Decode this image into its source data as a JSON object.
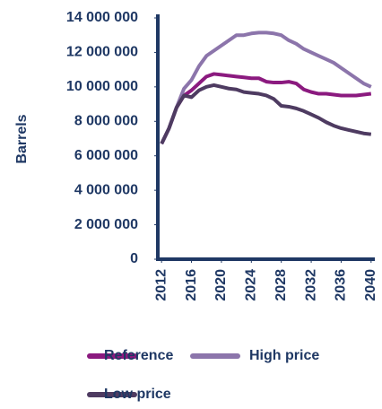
{
  "chart_data": {
    "type": "line",
    "y_label": "Barrels",
    "x": [
      2012,
      2013,
      2014,
      2015,
      2016,
      2017,
      2018,
      2019,
      2020,
      2021,
      2022,
      2023,
      2024,
      2025,
      2026,
      2027,
      2028,
      2029,
      2030,
      2031,
      2032,
      2033,
      2034,
      2035,
      2036,
      2037,
      2038,
      2039,
      2040
    ],
    "series": [
      {
        "name": "Reference",
        "color": "#8b1a7f",
        "values": [
          6700000,
          7600000,
          8800000,
          9500000,
          9800000,
          10200000,
          10600000,
          10750000,
          10700000,
          10650000,
          10600000,
          10550000,
          10500000,
          10500000,
          10300000,
          10250000,
          10250000,
          10300000,
          10200000,
          9850000,
          9700000,
          9600000,
          9600000,
          9550000,
          9500000,
          9500000,
          9500000,
          9550000,
          9600000
        ]
      },
      {
        "name": "High price",
        "color": "#8c75ab",
        "values": [
          6700000,
          7600000,
          8800000,
          9900000,
          10400000,
          11200000,
          11800000,
          12100000,
          12400000,
          12700000,
          13000000,
          13000000,
          13100000,
          13150000,
          13150000,
          13100000,
          13000000,
          12700000,
          12500000,
          12200000,
          12000000,
          11800000,
          11600000,
          11400000,
          11100000,
          10800000,
          10500000,
          10200000,
          10000000
        ]
      },
      {
        "name": "Low price",
        "color": "#4e3b61",
        "values": [
          6700000,
          7600000,
          8800000,
          9500000,
          9400000,
          9800000,
          10000000,
          10100000,
          10000000,
          9900000,
          9850000,
          9700000,
          9650000,
          9600000,
          9500000,
          9300000,
          8900000,
          8850000,
          8750000,
          8600000,
          8400000,
          8200000,
          7950000,
          7750000,
          7600000,
          7500000,
          7400000,
          7300000,
          7250000
        ]
      }
    ],
    "xlim": [
      2011.5,
      2040.5
    ],
    "xticks": [
      2012,
      2016,
      2020,
      2024,
      2028,
      2032,
      2036,
      2040
    ],
    "ylim": [
      0,
      14000000
    ],
    "yticks": [
      0,
      {
        "value": 2000000,
        "label": "2 000 000"
      },
      {
        "value": 4000000,
        "label": "4 000 000"
      },
      {
        "value": 6000000,
        "label": "6 000 000"
      },
      {
        "value": 8000000,
        "label": "8 000 000"
      },
      {
        "value": 10000000,
        "label": "10 000 000"
      },
      {
        "value": 12000000,
        "label": "12 000 000"
      },
      {
        "value": 14000000,
        "label": "14 000 000"
      }
    ],
    "axis_color": "#1f3864"
  }
}
